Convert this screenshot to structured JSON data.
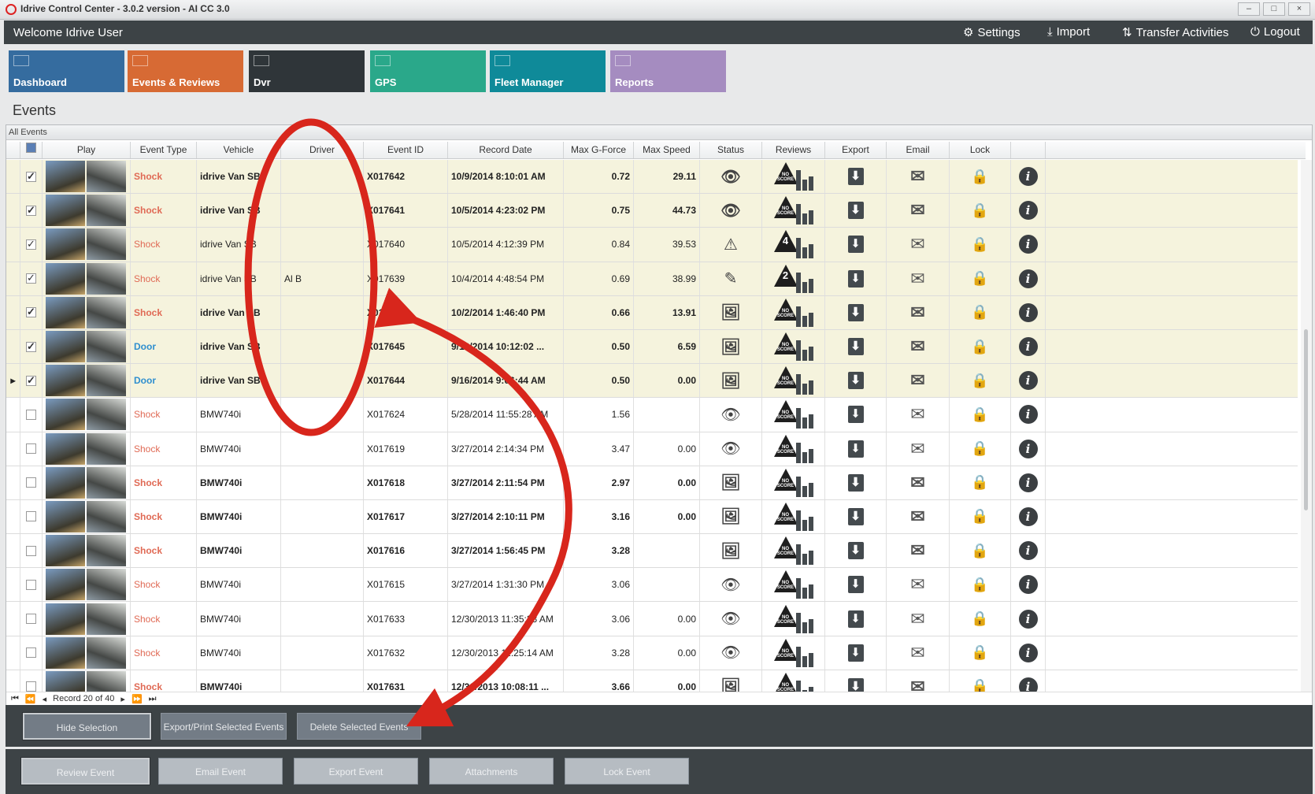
{
  "window": {
    "title": "Idrive Control Center - 3.0.2 version - AI CC 3.0",
    "min": "–",
    "max": "□",
    "close": "×"
  },
  "header": {
    "welcome": "Welcome Idrive User",
    "settings": "Settings",
    "import": "Import",
    "transfer": "Transfer Activities",
    "logout": "Logout"
  },
  "tiles": [
    {
      "label": "Dashboard",
      "color": "#356c9f"
    },
    {
      "label": "Events & Reviews",
      "color": "#d76a34"
    },
    {
      "label": "Dvr",
      "color": "#2f3539"
    },
    {
      "label": "GPS",
      "color": "#2aa88a"
    },
    {
      "label": "Fleet Manager",
      "color": "#0f8a99"
    },
    {
      "label": "Reports",
      "color": "#a58cc0"
    }
  ],
  "page_title": "Events",
  "grid": {
    "caption": "All Events",
    "columns": [
      "",
      "",
      "Play",
      "Event Type",
      "Vehicle",
      "Driver",
      "Event ID",
      "Record Date",
      "Max G-Force",
      "Max Speed",
      "Status",
      "Reviews",
      "Export",
      "Email",
      "Lock",
      ""
    ],
    "rows": [
      {
        "sel": true,
        "bold": true,
        "type": "Shock",
        "vehicle": "idrive Van SB",
        "driver": "",
        "id": "X017642",
        "date": "10/9/2014 8:10:01 AM",
        "g": "0.72",
        "speed": "29.11",
        "status": "eye",
        "review": "NO SCORE"
      },
      {
        "sel": true,
        "bold": true,
        "type": "Shock",
        "vehicle": "idrive Van SB",
        "driver": "",
        "id": "X017641",
        "date": "10/5/2014 4:23:02 PM",
        "g": "0.75",
        "speed": "44.73",
        "status": "eye",
        "review": "NO SCORE"
      },
      {
        "sel": true,
        "bold": false,
        "type": "Shock",
        "vehicle": "idrive Van SB",
        "driver": "",
        "id": "X017640",
        "date": "10/5/2014 4:12:39 PM",
        "g": "0.84",
        "speed": "39.53",
        "status": "warning",
        "review": "4"
      },
      {
        "sel": true,
        "bold": false,
        "type": "Shock",
        "vehicle": "idrive Van SB",
        "driver": "Al B",
        "id": "X017639",
        "date": "10/4/2014 4:48:54 PM",
        "g": "0.69",
        "speed": "38.99",
        "status": "pencil",
        "review": "2"
      },
      {
        "sel": true,
        "bold": true,
        "type": "Shock",
        "vehicle": "idrive Van SB",
        "driver": "",
        "id": "X017643",
        "date": "10/2/2014 1:46:40 PM",
        "g": "0.66",
        "speed": "13.91",
        "status": "image",
        "review": "NO SCORE"
      },
      {
        "sel": true,
        "bold": true,
        "type": "Door",
        "vehicle": "idrive Van SB",
        "driver": "",
        "id": "X017645",
        "date": "9/16/2014 10:12:02 ...",
        "g": "0.50",
        "speed": "6.59",
        "status": "image",
        "review": "NO SCORE"
      },
      {
        "sel": true,
        "bold": true,
        "current": true,
        "type": "Door",
        "vehicle": "idrive Van SB",
        "driver": "",
        "id": "X017644",
        "date": "9/16/2014 9:06:44 AM",
        "g": "0.50",
        "speed": "0.00",
        "status": "image",
        "review": "NO SCORE"
      },
      {
        "sel": false,
        "bold": false,
        "type": "Shock",
        "vehicle": "BMW740i",
        "driver": "",
        "id": "X017624",
        "date": "5/28/2014 11:55:28 AM",
        "g": "1.56",
        "speed": "",
        "status": "eye",
        "review": "NO SCORE"
      },
      {
        "sel": false,
        "bold": false,
        "type": "Shock",
        "vehicle": "BMW740i",
        "driver": "",
        "id": "X017619",
        "date": "3/27/2014 2:14:34 PM",
        "g": "3.47",
        "speed": "0.00",
        "status": "eye",
        "review": "NO SCORE"
      },
      {
        "sel": false,
        "bold": true,
        "type": "Shock",
        "vehicle": "BMW740i",
        "driver": "",
        "id": "X017618",
        "date": "3/27/2014 2:11:54 PM",
        "g": "2.97",
        "speed": "0.00",
        "status": "image",
        "review": "NO SCORE"
      },
      {
        "sel": false,
        "bold": true,
        "type": "Shock",
        "vehicle": "BMW740i",
        "driver": "",
        "id": "X017617",
        "date": "3/27/2014 2:10:11 PM",
        "g": "3.16",
        "speed": "0.00",
        "status": "image",
        "review": "NO SCORE"
      },
      {
        "sel": false,
        "bold": true,
        "type": "Shock",
        "vehicle": "BMW740i",
        "driver": "",
        "id": "X017616",
        "date": "3/27/2014 1:56:45 PM",
        "g": "3.28",
        "speed": "",
        "status": "image",
        "review": "NO SCORE"
      },
      {
        "sel": false,
        "bold": false,
        "type": "Shock",
        "vehicle": "BMW740i",
        "driver": "",
        "id": "X017615",
        "date": "3/27/2014 1:31:30 PM",
        "g": "3.06",
        "speed": "",
        "status": "eye",
        "review": "NO SCORE"
      },
      {
        "sel": false,
        "bold": false,
        "type": "Shock",
        "vehicle": "BMW740i",
        "driver": "",
        "id": "X017633",
        "date": "12/30/2013 11:35:33 AM",
        "g": "3.06",
        "speed": "0.00",
        "status": "eye",
        "review": "NO SCORE"
      },
      {
        "sel": false,
        "bold": false,
        "type": "Shock",
        "vehicle": "BMW740i",
        "driver": "",
        "id": "X017632",
        "date": "12/30/2013 11:25:14 AM",
        "g": "3.28",
        "speed": "0.00",
        "status": "eye",
        "review": "NO SCORE"
      },
      {
        "sel": false,
        "bold": true,
        "type": "Shock",
        "vehicle": "BMW740i",
        "driver": "",
        "id": "X017631",
        "date": "12/30/2013 10:08:11 ...",
        "g": "3.66",
        "speed": "0.00",
        "status": "image",
        "review": "NO SCORE"
      }
    ],
    "navigator": "Record 20 of 40"
  },
  "selection_bar": {
    "hide": "Hide Selection",
    "export": "Export/Print Selected Events",
    "delete": "Delete Selected  Events"
  },
  "action_bar": {
    "review": "Review Event",
    "email": "Email Event",
    "export": "Export Event",
    "attachments": "Attachments",
    "lock": "Lock Event"
  },
  "annotation_color": "#d8261c"
}
